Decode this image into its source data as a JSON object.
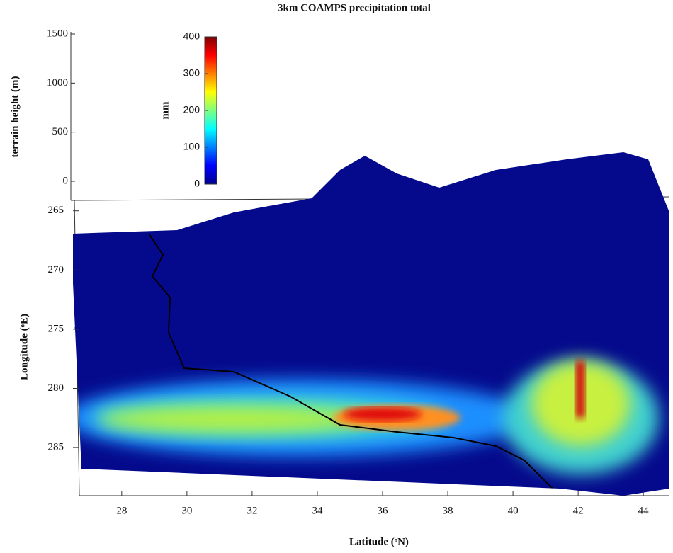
{
  "chart_data": {
    "type": "surface",
    "title": "3km COAMPS precipitation total",
    "xlabel": "Latitude (ᵒN)",
    "ylabel": "Longitude (ᵒE)",
    "zlabel": "terrain height (m)",
    "xlim": [
      26.7,
      44.8
    ],
    "xticks": [
      28,
      30,
      32,
      34,
      36,
      38,
      40,
      42,
      44
    ],
    "ylim": [
      264,
      289
    ],
    "yticks": [
      265,
      270,
      275,
      280,
      285
    ],
    "zlim": [
      0,
      1500
    ],
    "zticks": [
      0,
      500,
      1000,
      1500
    ],
    "colorbar": {
      "label": "mm",
      "lim": [
        0,
        400
      ],
      "ticks": [
        0,
        100,
        200,
        300,
        400
      ]
    }
  }
}
